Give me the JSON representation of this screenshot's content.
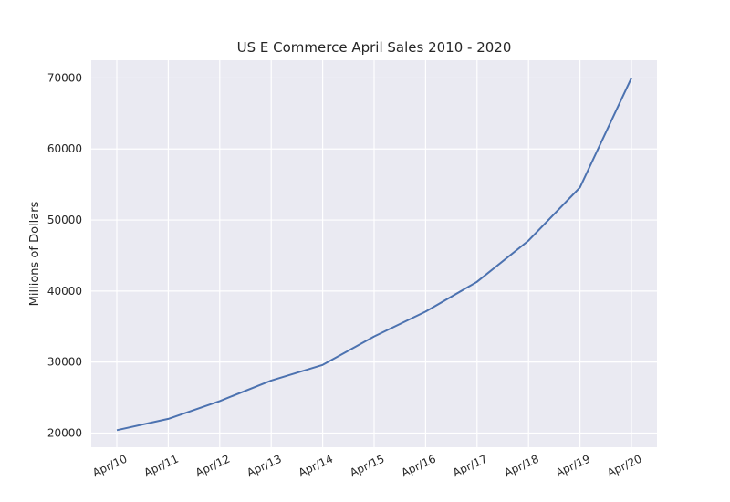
{
  "chart_data": {
    "type": "line",
    "title": "US E Commerce April Sales 2010 - 2020",
    "xlabel": "",
    "ylabel": "Millions of Dollars",
    "categories": [
      "Apr/10",
      "Apr/11",
      "Apr/12",
      "Apr/13",
      "Apr/14",
      "Apr/15",
      "Apr/16",
      "Apr/17",
      "Apr/18",
      "Apr/19",
      "Apr/20"
    ],
    "series": [
      {
        "values": [
          20400,
          22000,
          24500,
          27400,
          29600,
          33600,
          37100,
          41300,
          47100,
          54600,
          70000
        ],
        "color": "#4c72b0"
      }
    ],
    "yticks": [
      "20000",
      "30000",
      "40000",
      "50000",
      "60000",
      "70000"
    ],
    "ytick_values": [
      20000,
      30000,
      40000,
      50000,
      60000,
      70000
    ],
    "ylim": [
      18000,
      72500
    ],
    "grid": true,
    "legend": "none",
    "background": "#eaeaf2",
    "grid_color": "#ffffff"
  }
}
